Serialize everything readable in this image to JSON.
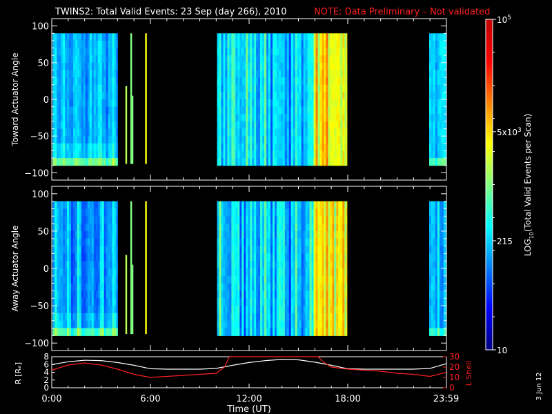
{
  "title": {
    "main": "TWINS2: Total Valid Events: 23 Sep (day 266), 2010",
    "note": "NOTE: Data Preliminary – Not validated",
    "note_color": "#ff2020"
  },
  "side_stamp": "3 Jun 12",
  "chart_data": [
    {
      "type": "heatmap",
      "name": "toward",
      "ylabel": "Toward Actuator Angle",
      "ylim": [
        -110,
        110
      ],
      "yticks": [
        100,
        50,
        0,
        -50,
        -100
      ],
      "ytick_labels": [
        "100",
        "50",
        "0",
        "−50",
        "−100"
      ],
      "x_range_hours": [
        0,
        24
      ],
      "angle_range": [
        -90,
        90
      ],
      "coverage_hours": [
        [
          0.05,
          4.0
        ],
        [
          10.05,
          17.95
        ],
        [
          22.95,
          24.0
        ]
      ],
      "spikes": [
        {
          "hour": 4.52,
          "top": 18,
          "bottom": -88,
          "level": 0.55
        },
        {
          "hour": 4.82,
          "top": 90,
          "bottom": -88,
          "level": 0.5
        },
        {
          "hour": 4.9,
          "top": 5,
          "bottom": -88,
          "level": 0.5
        },
        {
          "hour": 5.72,
          "top": 90,
          "bottom": -88,
          "level": 0.62
        }
      ],
      "bright_band_hours": [
        [
          15.95,
          17.95
        ]
      ]
    },
    {
      "type": "heatmap",
      "name": "away",
      "ylabel": "Away Actuator Angle",
      "ylim": [
        -110,
        110
      ],
      "yticks": [
        100,
        50,
        0,
        -50,
        -100
      ],
      "ytick_labels": [
        "100",
        "50",
        "0",
        "−50",
        "−100"
      ],
      "x_range_hours": [
        0,
        24
      ],
      "angle_range": [
        -90,
        90
      ],
      "coverage_hours": [
        [
          0.05,
          4.0
        ],
        [
          10.05,
          17.95
        ],
        [
          22.95,
          24.0
        ]
      ],
      "spikes": [
        {
          "hour": 4.52,
          "top": 18,
          "bottom": -88,
          "level": 0.55
        },
        {
          "hour": 4.82,
          "top": 90,
          "bottom": -88,
          "level": 0.5
        },
        {
          "hour": 4.9,
          "top": 5,
          "bottom": -88,
          "level": 0.5
        },
        {
          "hour": 5.72,
          "top": 90,
          "bottom": -88,
          "level": 0.62
        }
      ],
      "bright_band_hours": [
        [
          15.95,
          17.95
        ]
      ]
    },
    {
      "type": "line",
      "name": "orbit",
      "ylabel_left": "R [Rₑ]",
      "ylabel_right": "L Shell",
      "ylim_left": [
        0,
        8
      ],
      "yticks_left": [
        "8",
        "6",
        "4",
        "2",
        "0"
      ],
      "ylim_right": [
        0,
        30
      ],
      "yticks_right": [
        "30",
        "20",
        "10",
        "0"
      ],
      "xlabel": "Time (UT)",
      "xtick_labels": [
        "0:00",
        "6:00",
        "12:00",
        "18:00",
        "23:59"
      ],
      "xtick_hours": [
        0,
        6,
        12,
        18,
        23.98
      ],
      "series": [
        {
          "axis": "left",
          "color": "#ffffff",
          "x": [
            0,
            1,
            2,
            3,
            4,
            5,
            6,
            7,
            8,
            9,
            10,
            11,
            12,
            13,
            14,
            15,
            16,
            17,
            18,
            19,
            20,
            21,
            22,
            23,
            24
          ],
          "values": [
            6.0,
            6.7,
            7.1,
            7.0,
            6.5,
            5.8,
            4.9,
            4.8,
            4.8,
            4.8,
            5.0,
            5.8,
            6.5,
            7.0,
            7.3,
            7.2,
            6.6,
            5.8,
            4.9,
            4.8,
            4.8,
            4.8,
            4.8,
            5.0,
            6.2
          ]
        },
        {
          "axis": "right",
          "color": "#ff2020",
          "x": [
            0,
            1,
            2,
            3,
            4,
            5,
            6,
            7,
            8,
            9,
            10,
            10.5,
            10.8,
            16.2,
            16.5,
            17,
            18,
            19,
            20,
            21,
            22,
            23,
            24
          ],
          "values": [
            17,
            22,
            24,
            22,
            18,
            13,
            10,
            11,
            12,
            13,
            14,
            20,
            30,
            30,
            25,
            20,
            18,
            17,
            16,
            14,
            13,
            11,
            15
          ]
        }
      ]
    }
  ],
  "colorbar": {
    "label": "LOG10(Total Valid Events per Scan)",
    "label_base": "LOG",
    "label_sub": "10",
    "label_rest": "(Total Valid Events per Scan)",
    "ticks": [
      {
        "level": 1.0,
        "label": "10",
        "sup": "5"
      },
      {
        "level": 0.66,
        "label": "5x10",
        "sup": "3"
      },
      {
        "level": 0.33,
        "label": "215",
        "sup": ""
      },
      {
        "level": 0.0,
        "label": "10",
        "sup": ""
      }
    ],
    "stops": [
      "#00007f",
      "#0000ff",
      "#0080ff",
      "#00ffff",
      "#80ff80",
      "#ffff00",
      "#ff8000",
      "#ff0000",
      "#c00000"
    ]
  }
}
